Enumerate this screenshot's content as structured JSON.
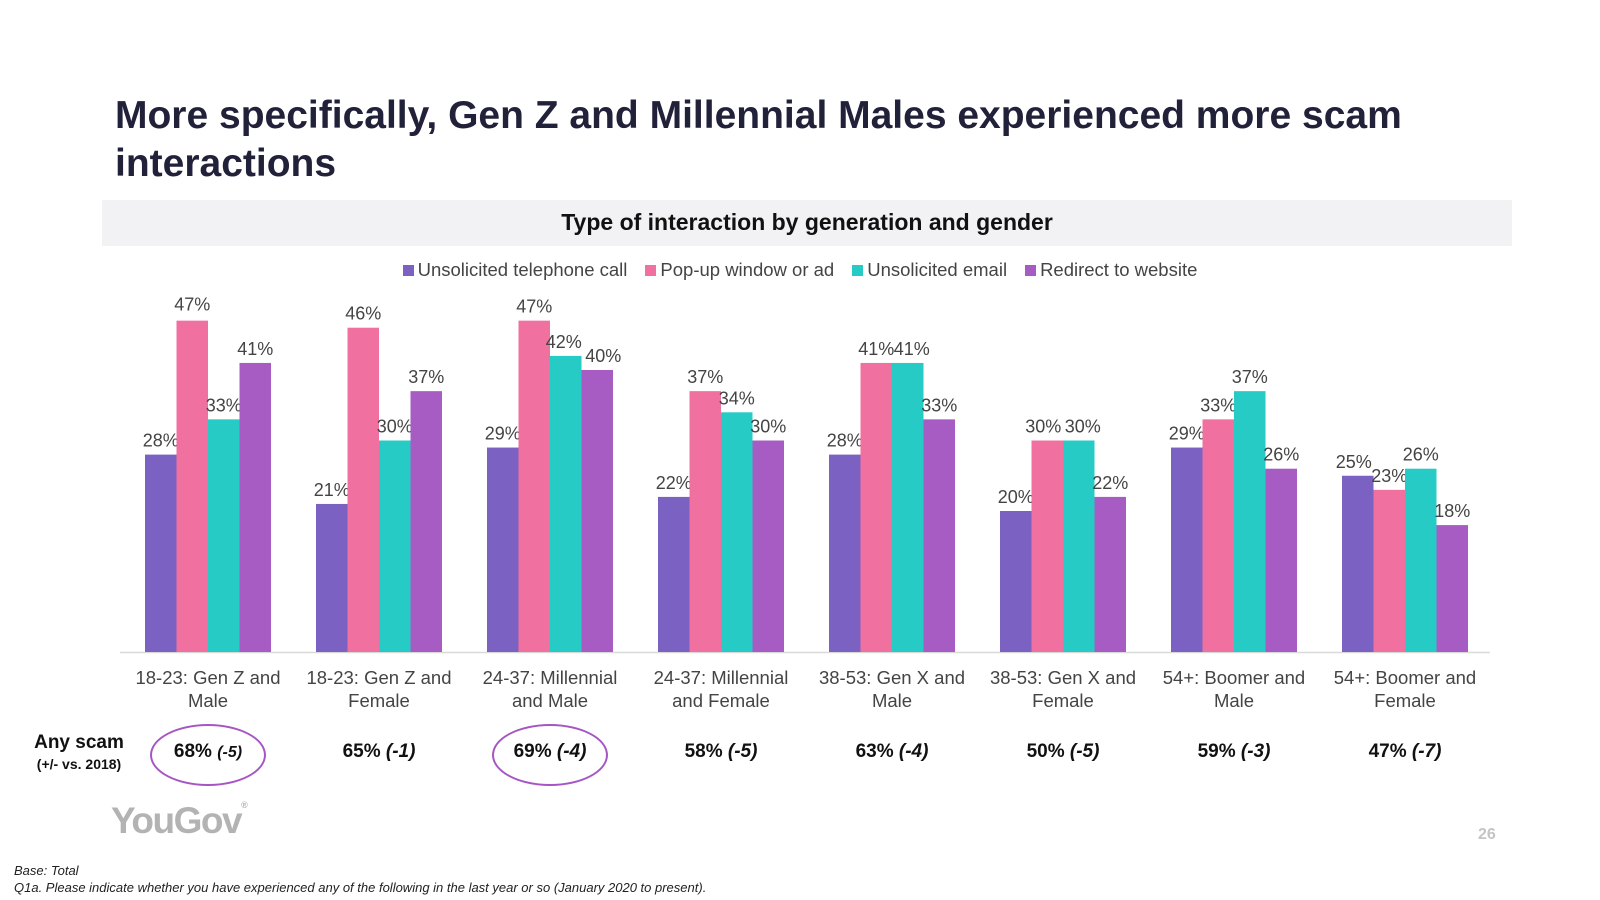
{
  "title": "More specifically, Gen Z and Millennial Males experienced more scam interactions",
  "colors": {
    "series": [
      "#7b61c1",
      "#f0709f",
      "#27cbc6",
      "#a65cc3"
    ],
    "highlight_circle": "#a556c4",
    "axis": "#d9d9d9"
  },
  "chart_data": {
    "type": "bar",
    "title": "Type of interaction by generation and gender",
    "categories": [
      "18-23: Gen Z and Male",
      "18-23: Gen Z and Female",
      "24-37: Millennial and Male",
      "24-37: Millennial and Female",
      "38-53: Gen X and Male",
      "38-53: Gen X and Female",
      "54+: Boomer and Male",
      "54+: Boomer and Female"
    ],
    "category_lines": [
      [
        "18-23: Gen Z and",
        "Male"
      ],
      [
        "18-23: Gen Z and",
        "Female"
      ],
      [
        "24-37: Millennial",
        "and Male"
      ],
      [
        "24-37: Millennial",
        "and Female"
      ],
      [
        "38-53: Gen X and",
        "Male"
      ],
      [
        "38-53: Gen X and",
        "Female"
      ],
      [
        "54+: Boomer and",
        "Male"
      ],
      [
        "54+: Boomer and",
        "Female"
      ]
    ],
    "series": [
      {
        "name": "Unsolicited telephone call",
        "values": [
          28,
          21,
          29,
          22,
          28,
          20,
          29,
          25
        ]
      },
      {
        "name": "Pop-up window or ad",
        "values": [
          47,
          46,
          47,
          37,
          41,
          30,
          33,
          23
        ]
      },
      {
        "name": "Unsolicited email",
        "values": [
          33,
          30,
          42,
          34,
          41,
          30,
          37,
          26
        ]
      },
      {
        "name": "Redirect to website",
        "values": [
          41,
          37,
          40,
          30,
          33,
          22,
          26,
          18
        ]
      }
    ],
    "value_suffix": "%",
    "ylim": [
      0,
      50
    ],
    "legend_position": "top",
    "grid": false
  },
  "any_scam": {
    "label": "Any scam",
    "sublabel": "(+/- vs. 2018)",
    "values": [
      {
        "value": "68%",
        "delta": "(-5)",
        "highlighted": true
      },
      {
        "value": "65%",
        "delta": "(-1)",
        "highlighted": false
      },
      {
        "value": "69%",
        "delta": "(-4)",
        "highlighted": true
      },
      {
        "value": "58%",
        "delta": "(-5)",
        "highlighted": false
      },
      {
        "value": "63%",
        "delta": "(-4)",
        "highlighted": false
      },
      {
        "value": "50%",
        "delta": "(-5)",
        "highlighted": false
      },
      {
        "value": "59%",
        "delta": "(-3)",
        "highlighted": false
      },
      {
        "value": "47%",
        "delta": "(-7)",
        "highlighted": false
      }
    ]
  },
  "logo": {
    "text": "YouGov",
    "mark": "®"
  },
  "page_number": "26",
  "footnotes": {
    "base": "Base: Total",
    "question": "Q1a. Please indicate whether you have experienced any of the following in the last year or so (January 2020 to present)."
  }
}
